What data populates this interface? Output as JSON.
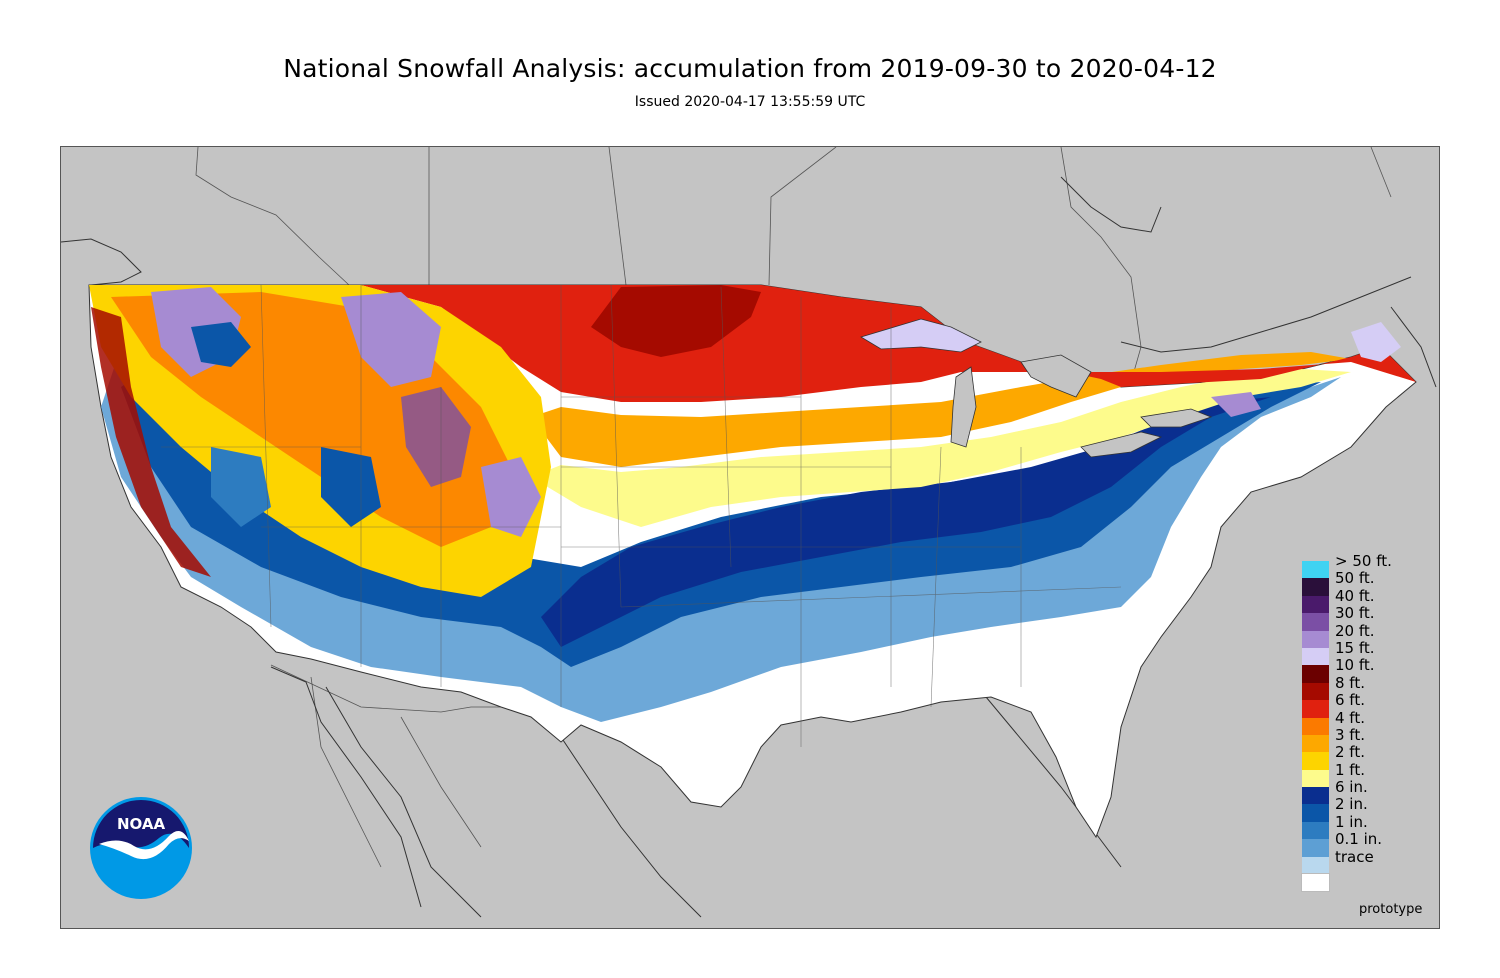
{
  "title": "National Snowfall Analysis: accumulation from 2019-09-30 to 2020-04-12",
  "subtitle": "Issued 2020-04-17 13:55:59 UTC",
  "footer_note": "prototype",
  "logo_text": "NOAA",
  "colors": {
    "background_land_outside": "#c4c4c4",
    "water": "#c4c4c4"
  },
  "legend": [
    {
      "label": "> 50 ft.",
      "color": "#3fd3f2"
    },
    {
      "label": "50 ft.",
      "color": "#2a0f3a"
    },
    {
      "label": "40 ft.",
      "color": "#4a1a6b"
    },
    {
      "label": "30 ft.",
      "color": "#7b4fa5"
    },
    {
      "label": "20 ft.",
      "color": "#a68bd2"
    },
    {
      "label": "15 ft.",
      "color": "#d5cdf5"
    },
    {
      "label": "10 ft.",
      "color": "#6b0000"
    },
    {
      "label": "8 ft.",
      "color": "#a50a00"
    },
    {
      "label": "6 ft.",
      "color": "#e0210f"
    },
    {
      "label": "4 ft.",
      "color": "#fb7a00"
    },
    {
      "label": "3 ft.",
      "color": "#fda800"
    },
    {
      "label": "2 ft.",
      "color": "#fdd400"
    },
    {
      "label": "1 ft.",
      "color": "#fdfb8c"
    },
    {
      "label": "6 in.",
      "color": "#0a2e8f"
    },
    {
      "label": "2 in.",
      "color": "#0b56a8"
    },
    {
      "label": "1 in.",
      "color": "#2d7cc0"
    },
    {
      "label": "0.1 in.",
      "color": "#5d9fd4"
    },
    {
      "label": "trace",
      "color": "#b9d8ee"
    },
    {
      "label": "",
      "color": "#ffffff"
    }
  ]
}
